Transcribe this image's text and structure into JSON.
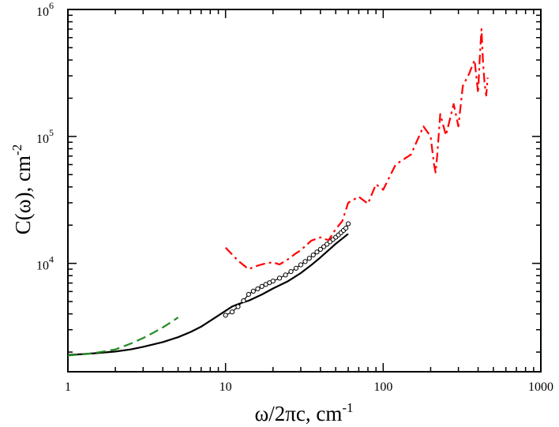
{
  "chart_data": {
    "type": "line",
    "title": "",
    "xscale": "log",
    "yscale": "log",
    "xlim": [
      1,
      1000
    ],
    "ylim": [
      1400,
      1000000
    ],
    "xlabel": {
      "main": "ω/2πc, cm",
      "sup": "-1"
    },
    "ylabel": {
      "main": "C(ω), cm",
      "sup": "-2"
    },
    "x_ticks": [
      {
        "value": 1,
        "label": "1"
      },
      {
        "value": 10,
        "label": "10"
      },
      {
        "value": 100,
        "label": "100"
      },
      {
        "value": 1000,
        "label": "1000"
      }
    ],
    "y_ticks": [
      {
        "value": 10000,
        "base": "10",
        "exp": "4"
      },
      {
        "value": 100000,
        "base": "10",
        "exp": "5"
      },
      {
        "value": 1000000,
        "base": "10",
        "exp": "6"
      }
    ],
    "series": [
      {
        "name": "solid-black",
        "color": "#000000",
        "style": "solid",
        "x": [
          1,
          1.2,
          1.5,
          2,
          2.5,
          3,
          4,
          5,
          6,
          7,
          8,
          9,
          10,
          11,
          12,
          13,
          14,
          15,
          17,
          20,
          25,
          30,
          35,
          40,
          50,
          60
        ],
        "y": [
          1900,
          1920,
          1960,
          2020,
          2100,
          2200,
          2400,
          2620,
          2880,
          3170,
          3530,
          3880,
          4230,
          4570,
          4770,
          4940,
          5080,
          5280,
          5690,
          6340,
          7250,
          8380,
          9700,
          11150,
          14260,
          17080
        ]
      },
      {
        "name": "dashed-green",
        "color": "#228B22",
        "style": "dashed",
        "x": [
          1,
          1.3,
          1.6,
          2,
          2.5,
          3,
          3.5,
          4,
          4.5,
          5
        ],
        "y": [
          1880,
          1930,
          2000,
          2100,
          2330,
          2580,
          2850,
          3130,
          3430,
          3750
        ]
      },
      {
        "name": "circles-black",
        "color": "#000000",
        "style": "line-markers",
        "x": [
          10,
          11,
          12,
          13,
          14,
          15,
          16,
          17,
          18,
          19,
          20,
          22,
          24,
          26,
          28,
          30,
          32,
          34,
          36,
          38,
          40,
          42,
          44,
          46,
          48,
          50,
          52,
          54,
          56,
          58,
          60
        ],
        "y": [
          3900,
          4140,
          4560,
          5080,
          5700,
          6040,
          6300,
          6580,
          6820,
          7040,
          7250,
          7650,
          8100,
          8620,
          9160,
          9740,
          10330,
          10960,
          11640,
          12280,
          12900,
          13530,
          14160,
          14790,
          15420,
          16060,
          16750,
          17450,
          18180,
          18950,
          20500
        ]
      },
      {
        "name": "dashdot-red",
        "color": "#FF0000",
        "style": "dashdot",
        "x": [
          10,
          12,
          14,
          16,
          18,
          20,
          22,
          25,
          28,
          30,
          35,
          40,
          45,
          50,
          55,
          60,
          70,
          80,
          90,
          100,
          120,
          150,
          180,
          200,
          210,
          215,
          220,
          230,
          250,
          280,
          300,
          320,
          350,
          380,
          400,
          410,
          420,
          430,
          440,
          450,
          460
        ],
        "y": [
          13300,
          10500,
          9000,
          9600,
          10000,
          10200,
          9800,
          10800,
          12000,
          12700,
          15100,
          16000,
          15200,
          18600,
          21500,
          30000,
          33500,
          29500,
          42000,
          38000,
          60000,
          72000,
          120000,
          100000,
          60000,
          52000,
          70000,
          150000,
          102000,
          180000,
          120000,
          250000,
          310000,
          400000,
          220000,
          420000,
          700000,
          380000,
          260000,
          210000,
          290000
        ]
      }
    ]
  }
}
